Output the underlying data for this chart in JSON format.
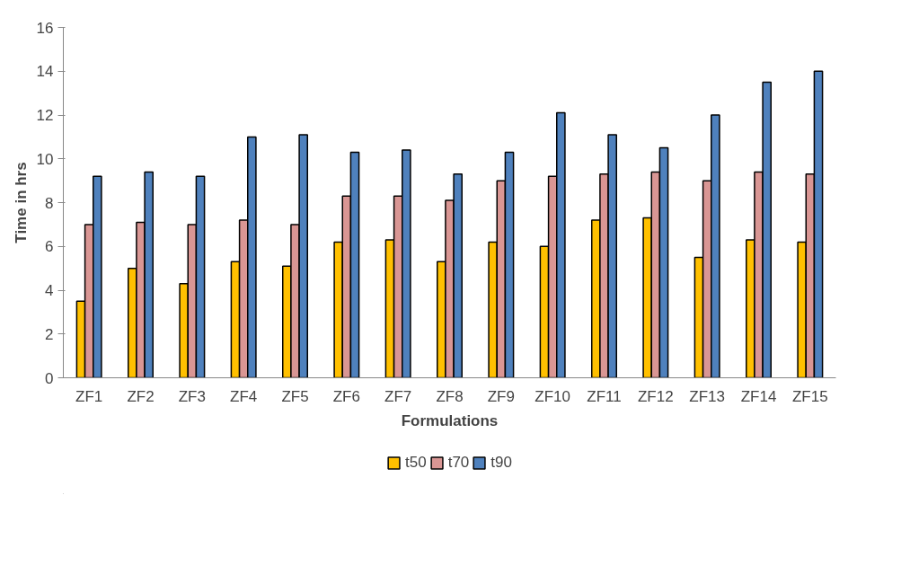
{
  "chart_data": {
    "type": "bar",
    "xlabel": "Formulations",
    "ylabel": "Time in hrs",
    "categories": [
      "ZF1",
      "ZF2",
      "ZF3",
      "ZF4",
      "ZF5",
      "ZF6",
      "ZF7",
      "ZF8",
      "ZF9",
      "ZF10",
      "ZF11",
      "ZF12",
      "ZF13",
      "ZF14",
      "ZF15"
    ],
    "series": [
      {
        "name": "t50",
        "color": "#ffc000",
        "values": [
          3.5,
          5.0,
          4.3,
          5.3,
          5.1,
          6.2,
          6.3,
          5.3,
          6.2,
          6.0,
          7.2,
          7.3,
          5.5,
          6.3,
          6.2
        ]
      },
      {
        "name": "t70",
        "color": "#d99694",
        "values": [
          7.0,
          7.1,
          7.0,
          7.2,
          7.0,
          8.3,
          8.3,
          8.1,
          9.0,
          9.2,
          9.3,
          9.4,
          9.0,
          9.4,
          9.3
        ]
      },
      {
        "name": "t90",
        "color": "#4f81bd",
        "values": [
          9.2,
          9.4,
          9.2,
          11.0,
          11.1,
          10.3,
          10.4,
          9.3,
          10.3,
          12.1,
          11.1,
          10.5,
          12.0,
          13.5,
          14.0
        ]
      }
    ],
    "ylim": [
      0,
      16
    ],
    "yticks": [
      0,
      2,
      4,
      6,
      8,
      10,
      12,
      14,
      16
    ],
    "grid": false,
    "legend": "bottom"
  }
}
